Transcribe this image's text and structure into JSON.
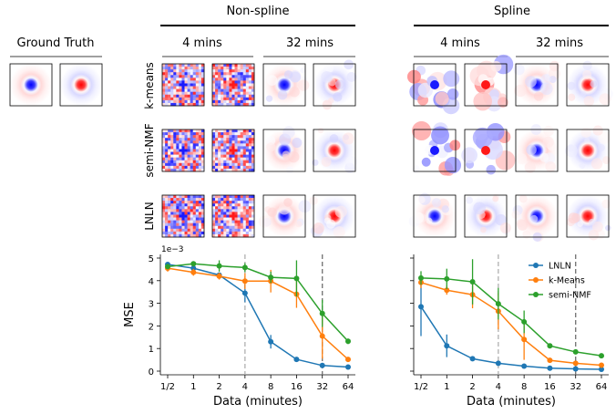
{
  "headers": {
    "ground_truth": "Ground Truth",
    "non_spline": "Non-spline",
    "spline": "Spline",
    "time_4": "4 mins",
    "time_32": "32 mins"
  },
  "row_labels": [
    "k-means",
    "semi-NMF",
    "LNLN"
  ],
  "filter_grid": {
    "ground_truth": [
      "center-blue",
      "center-red"
    ],
    "non_spline": {
      "k-means": [
        "noisy-blue",
        "noisy-red",
        "smooth-blue",
        "smooth-red"
      ],
      "semi-NMF": [
        "noisy-blue",
        "noisy-red",
        "smooth-blue",
        "smooth-red"
      ],
      "LNLN": [
        "noisy-blue",
        "noisy-red",
        "smooth-blue",
        "smooth-red"
      ]
    },
    "spline": {
      "k-means": [
        "blotchy-blue",
        "blotchy-red",
        "smooth-blue",
        "smooth-red"
      ],
      "semi-NMF": [
        "blotchy-blue",
        "blotchy-red",
        "smooth-blue",
        "smooth-red"
      ],
      "LNLN": [
        "smooth-blue",
        "smooth-red",
        "smooth-blue",
        "smooth-red"
      ]
    }
  },
  "colors": {
    "LNLN": "#1f77b4",
    "k-Means": "#ff7f0e",
    "semi-NMF": "#2ca02c",
    "blue": "#0000ff",
    "red": "#ff0000",
    "vline_4": "#b0b0b0",
    "vline_32": "#707070"
  },
  "chart_data": [
    {
      "type": "line",
      "panel": "Non-spline",
      "x": [
        "1/2",
        "1",
        "2",
        "4",
        "8",
        "16",
        "32",
        "64"
      ],
      "xlabel": "Data (minutes)",
      "ylabel": "MSE",
      "y_scale_label": "1e−3",
      "yticks": [
        "0",
        "1",
        "2",
        "3",
        "4",
        "5"
      ],
      "ylim": [
        0,
        5
      ],
      "vlines": [
        4,
        32
      ],
      "series": [
        {
          "name": "LNLN",
          "values": [
            4.72,
            4.55,
            4.25,
            3.45,
            1.3,
            0.52,
            0.25,
            0.18
          ],
          "err": [
            0.05,
            0.05,
            0.1,
            0.4,
            0.3,
            0.08,
            0.05,
            0.03
          ]
        },
        {
          "name": "k-Means",
          "values": [
            4.55,
            4.37,
            4.2,
            3.98,
            3.98,
            3.4,
            1.55,
            0.52
          ],
          "err": [
            0.15,
            0.15,
            0.15,
            0.35,
            0.5,
            0.6,
            1.0,
            0.1
          ]
        },
        {
          "name": "semi-NMF",
          "values": [
            4.62,
            4.75,
            4.65,
            4.58,
            4.15,
            4.1,
            2.55,
            1.32
          ],
          "err": [
            0.1,
            0.1,
            0.25,
            0.2,
            0.25,
            0.8,
            0.6,
            0.12
          ]
        }
      ]
    },
    {
      "type": "line",
      "panel": "Spline",
      "x": [
        "1/2",
        "1",
        "2",
        "4",
        "8",
        "16",
        "32",
        "64"
      ],
      "xlabel": "Data (minutes)",
      "ylabel": "",
      "ylim": [
        0,
        5
      ],
      "vlines": [
        4,
        32
      ],
      "legend": "top-right",
      "series": [
        {
          "name": "LNLN",
          "values": [
            2.85,
            1.12,
            0.55,
            0.35,
            0.22,
            0.13,
            0.1,
            0.08
          ],
          "err": [
            1.3,
            0.5,
            0.05,
            0.05,
            0.03,
            0.03,
            0.02,
            0.02
          ]
        },
        {
          "name": "k-Means",
          "values": [
            3.92,
            3.58,
            3.38,
            2.65,
            1.4,
            0.48,
            0.35,
            0.26
          ],
          "err": [
            0.25,
            0.2,
            0.6,
            0.8,
            0.9,
            0.05,
            0.05,
            0.03
          ]
        },
        {
          "name": "semi-NMF",
          "values": [
            4.12,
            4.08,
            3.95,
            2.98,
            2.18,
            1.12,
            0.85,
            0.68
          ],
          "err": [
            0.3,
            0.45,
            1.0,
            0.7,
            0.5,
            0.05,
            0.05,
            0.05
          ]
        }
      ]
    }
  ]
}
